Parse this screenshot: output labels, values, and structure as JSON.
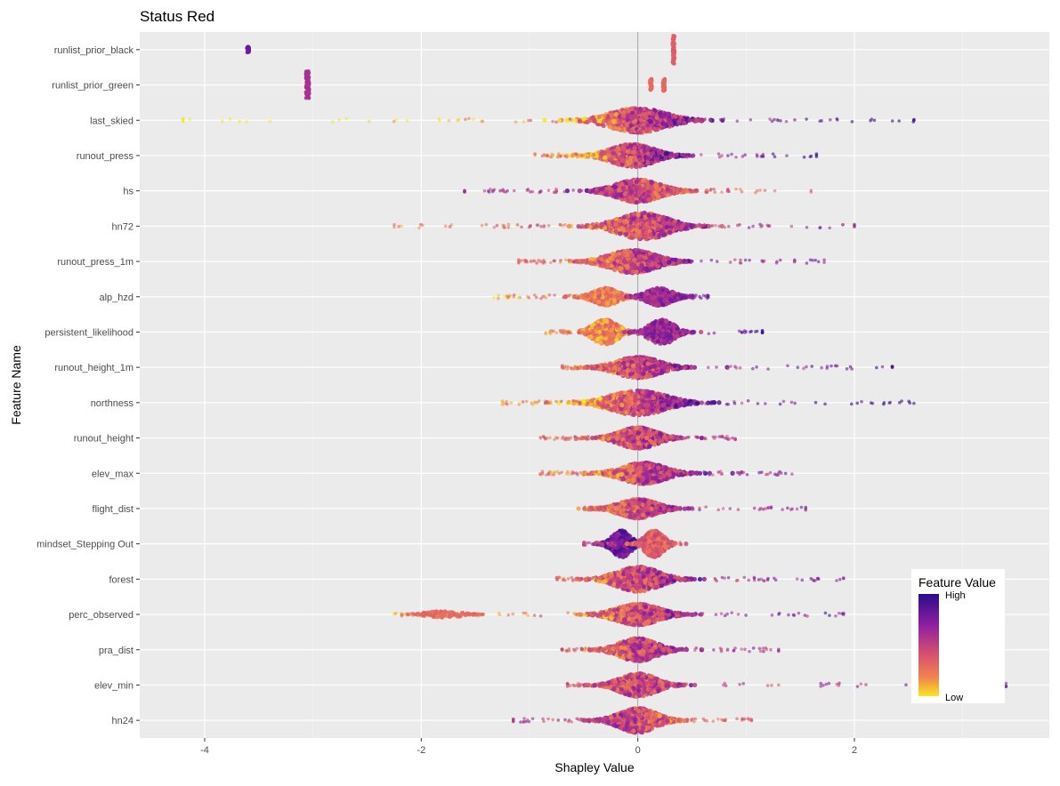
{
  "chart_data": {
    "type": "beeswarm",
    "title": "Status Red",
    "xlabel": "Shapley Value",
    "ylabel": "Feature Name",
    "xlim": [
      -4.6,
      3.8
    ],
    "xticks": [
      -4,
      -2,
      0,
      2
    ],
    "xtick_labels": [
      "-4",
      "-2",
      "0",
      "2"
    ],
    "grid": true,
    "colormap": "plasma-like (purple = high, yellow = low)",
    "colors": {
      "high": "#2a0c8c",
      "mid_high": "#8e1fa0",
      "mid": "#d9526e",
      "mid_low": "#f0854f",
      "low": "#f9e721",
      "panel": "#ebebeb",
      "gridline": "#ffffff",
      "zero_line": "#a0a0a0"
    },
    "legend": {
      "title": "Feature Value",
      "high_label": "High",
      "low_label": "Low",
      "placement": "right-bottom inside"
    },
    "features": [
      {
        "name": "runlist_prior_black",
        "clusters": [
          {
            "x": -3.6,
            "spread": 0.01,
            "height": 0.2,
            "value": 0.8,
            "n": 30
          },
          {
            "x": 0.33,
            "spread": 0.01,
            "height": 0.8,
            "value": 0.35,
            "n": 60
          }
        ]
      },
      {
        "name": "runlist_prior_green",
        "clusters": [
          {
            "x": -3.05,
            "spread": 0.015,
            "height": 0.8,
            "value": 0.6,
            "n": 70
          },
          {
            "x": 0.12,
            "spread": 0.01,
            "height": 0.35,
            "value": 0.3,
            "n": 30
          },
          {
            "x": 0.24,
            "spread": 0.01,
            "height": 0.35,
            "value": 0.3,
            "n": 30
          }
        ]
      },
      {
        "name": "last_skied",
        "range": [
          -4.2,
          2.55
        ],
        "center": 0.0,
        "width": 0.45,
        "height": 0.7,
        "trend": 0.6
      },
      {
        "name": "runout_press",
        "range": [
          -0.95,
          1.65
        ],
        "center": -0.05,
        "width": 0.35,
        "height": 0.65,
        "trend": 0.9
      },
      {
        "name": "hs",
        "range": [
          -1.6,
          1.6
        ],
        "center": 0.0,
        "width": 0.35,
        "height": 0.65,
        "trend": -0.4
      },
      {
        "name": "hn72",
        "range": [
          -2.25,
          2.0
        ],
        "center": 0.05,
        "width": 0.4,
        "height": 0.75,
        "trend": 0.3
      },
      {
        "name": "runout_press_1m",
        "range": [
          -1.1,
          1.75
        ],
        "center": -0.05,
        "width": 0.38,
        "height": 0.65,
        "trend": 0.5
      },
      {
        "name": "alp_hzd",
        "range": [
          -1.35,
          0.65
        ],
        "center": -0.3,
        "width": 0.2,
        "height": 0.5,
        "trend": 1.0,
        "bimodal": [
          {
            "x": -0.3,
            "value": 0.25
          },
          {
            "x": 0.2,
            "value": 0.65
          }
        ]
      },
      {
        "name": "persistent_likelihood",
        "range": [
          -0.85,
          1.15
        ],
        "center": -0.3,
        "width": 0.2,
        "height": 0.7,
        "trend": 1.0,
        "bimodal": [
          {
            "x": -0.3,
            "value": 0.2
          },
          {
            "x": 0.22,
            "value": 0.65
          }
        ]
      },
      {
        "name": "runout_height_1m",
        "range": [
          -0.7,
          2.35
        ],
        "center": 0.0,
        "width": 0.35,
        "height": 0.6,
        "trend": 0.5
      },
      {
        "name": "northness",
        "range": [
          -1.25,
          2.55
        ],
        "center": 0.0,
        "width": 0.45,
        "height": 0.7,
        "trend": 0.7
      },
      {
        "name": "runout_height",
        "range": [
          -0.9,
          0.9
        ],
        "center": 0.0,
        "width": 0.3,
        "height": 0.6,
        "trend": 0.3
      },
      {
        "name": "elev_max",
        "range": [
          -0.9,
          1.45
        ],
        "center": 0.05,
        "width": 0.35,
        "height": 0.6,
        "trend": 0.6
      },
      {
        "name": "flight_dist",
        "range": [
          -0.5,
          1.55
        ],
        "center": 0.0,
        "width": 0.3,
        "height": 0.55,
        "trend": 0.5
      },
      {
        "name": "mindset_Stepping Out",
        "range": [
          -0.5,
          0.4
        ],
        "center": 0.0,
        "width": 0.15,
        "height": 0.75,
        "trend": -1.0,
        "bimodal": [
          {
            "x": -0.15,
            "value": 0.8
          },
          {
            "x": 0.15,
            "value": 0.35
          }
        ]
      },
      {
        "name": "forest",
        "range": [
          -0.75,
          1.9
        ],
        "center": 0.0,
        "width": 0.35,
        "height": 0.7,
        "trend": 0.5
      },
      {
        "name": "perc_observed",
        "range": [
          -2.25,
          1.9
        ],
        "center": 0.0,
        "width": 0.35,
        "height": 0.6,
        "trend": 0.5,
        "extra": {
          "x": -1.8,
          "spread": 0.35,
          "value": 0.3,
          "n": 140
        }
      },
      {
        "name": "pra_dist",
        "range": [
          -0.7,
          1.3
        ],
        "center": 0.0,
        "width": 0.3,
        "height": 0.65,
        "trend": 0.4
      },
      {
        "name": "elev_min",
        "range": [
          -0.65,
          3.4
        ],
        "center": 0.0,
        "width": 0.3,
        "height": 0.65,
        "trend": 0.2
      },
      {
        "name": "hn24",
        "range": [
          -1.15,
          1.05
        ],
        "center": 0.0,
        "width": 0.3,
        "height": 0.7,
        "trend": -0.4
      }
    ]
  }
}
